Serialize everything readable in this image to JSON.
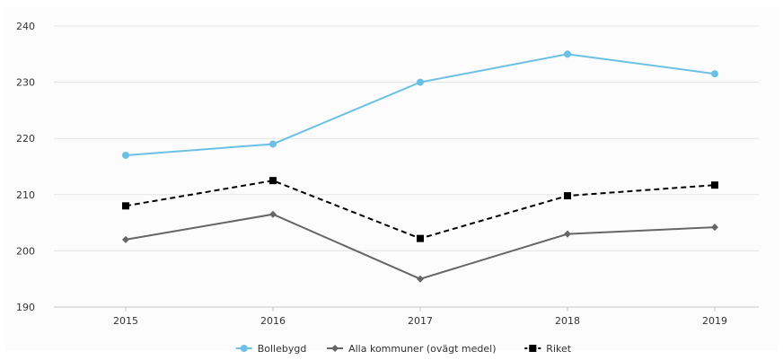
{
  "chart_data": {
    "type": "line",
    "categories": [
      "2015",
      "2016",
      "2017",
      "2018",
      "2019"
    ],
    "ylim": [
      190,
      240
    ],
    "yticks": [
      "190",
      "200",
      "210",
      "220",
      "230",
      "240"
    ],
    "grid": true,
    "legend_position": "bottom-center",
    "series": [
      {
        "name": "Bollebygd",
        "values": [
          217,
          219,
          230,
          235,
          231.5
        ],
        "color": "#6cc0e5",
        "marker": "circle",
        "dash": "solid"
      },
      {
        "name": "Alla kommuner (ovägt medel)",
        "values": [
          202,
          206.5,
          195,
          203,
          204.2
        ],
        "color": "#666666",
        "marker": "diamond",
        "dash": "solid"
      },
      {
        "name": "Riket",
        "values": [
          208,
          212.5,
          202.2,
          209.8,
          211.7
        ],
        "color": "#000000",
        "marker": "square",
        "dash": "dashed"
      }
    ]
  }
}
